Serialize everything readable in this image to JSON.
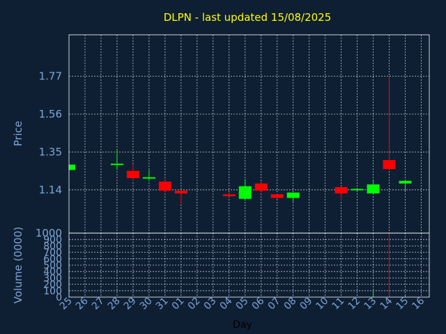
{
  "chart_data": {
    "type": "candlestick",
    "title": "DLPN - last updated 15/08/2025",
    "ylabel": "Price",
    "volume_ylabel": "Volume (0000)",
    "xlabel": "Day",
    "x_ticks": [
      "25",
      "26",
      "27",
      "28",
      "29",
      "30",
      "31",
      "01",
      "02",
      "03",
      "04",
      "05",
      "06",
      "07",
      "08",
      "09",
      "10",
      "11",
      "12",
      "13",
      "14",
      "15",
      "16"
    ],
    "y_ticks": [
      1.14,
      1.35,
      1.56,
      1.77
    ],
    "y_tick_labels": [
      "1.14",
      "1.35",
      "1.56",
      "1.77"
    ],
    "ylim": [
      0.9,
      2.0
    ],
    "volume_ticks": [
      0,
      100,
      200,
      300,
      400,
      500,
      600,
      700,
      800,
      900
    ],
    "volume_tick_labels": [
      "0",
      "100",
      "200",
      "300",
      "400",
      "500",
      "600",
      "700",
      "800",
      "900"
    ],
    "volume_top_label": "1000",
    "volume_ylim": [
      0,
      1000
    ],
    "colors": {
      "up": "#00ff00",
      "down": "#ff0000",
      "title": "#ffff00",
      "axis_text": "#7fa6d4",
      "background": "#0f1f33"
    },
    "candles": [
      {
        "day": "25",
        "open": 1.25,
        "high": 1.28,
        "low": 1.25,
        "close": 1.28,
        "volume": 0
      },
      {
        "day": "28",
        "open": 1.28,
        "high": 1.36,
        "low": 1.25,
        "close": 1.285,
        "volume": 0
      },
      {
        "day": "29",
        "open": 1.245,
        "high": 1.28,
        "low": 1.19,
        "close": 1.205,
        "volume": 0
      },
      {
        "day": "30",
        "open": 1.205,
        "high": 1.25,
        "low": 1.19,
        "close": 1.21,
        "volume": 0
      },
      {
        "day": "31",
        "open": 1.185,
        "high": 1.195,
        "low": 1.13,
        "close": 1.135,
        "volume": 0
      },
      {
        "day": "01",
        "open": 1.135,
        "high": 1.14,
        "low": 1.06,
        "close": 1.12,
        "volume": 0
      },
      {
        "day": "04",
        "open": 1.115,
        "high": 1.13,
        "low": 1.1,
        "close": 1.105,
        "volume": 0
      },
      {
        "day": "05",
        "open": 1.09,
        "high": 1.2,
        "low": 1.08,
        "close": 1.16,
        "volume": 0
      },
      {
        "day": "06",
        "open": 1.175,
        "high": 1.19,
        "low": 1.13,
        "close": 1.135,
        "volume": 0
      },
      {
        "day": "07",
        "open": 1.115,
        "high": 1.12,
        "low": 1.09,
        "close": 1.095,
        "volume": 0
      },
      {
        "day": "08",
        "open": 1.095,
        "high": 1.125,
        "low": 1.075,
        "close": 1.125,
        "volume": 0
      },
      {
        "day": "11",
        "open": 1.155,
        "high": 1.16,
        "low": 1.08,
        "close": 1.12,
        "volume": 0
      },
      {
        "day": "12",
        "open": 1.14,
        "high": 1.15,
        "low": 1.135,
        "close": 1.145,
        "volume": 0
      },
      {
        "day": "13",
        "open": 1.12,
        "high": 1.195,
        "low": 1.115,
        "close": 1.17,
        "volume": 100
      },
      {
        "day": "14",
        "open": 1.305,
        "high": 1.77,
        "low": 1.25,
        "close": 1.255,
        "volume": 1000
      },
      {
        "day": "15",
        "open": 1.175,
        "high": 1.195,
        "low": 1.13,
        "close": 1.19,
        "volume": 30
      }
    ]
  }
}
